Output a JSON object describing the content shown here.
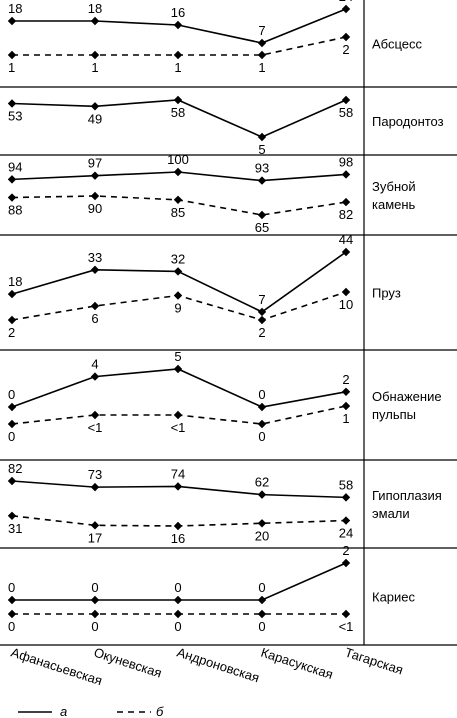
{
  "chart_data": {
    "type": "line",
    "categories": [
      "Афанасьевская",
      "Окуневская",
      "Андроновская",
      "Карасукская",
      "Тагарская"
    ],
    "legend": {
      "a": "а",
      "b": "б",
      "placement": "bottom-left"
    },
    "panels": [
      {
        "label": [
          "Абсцесс"
        ],
        "series": [
          {
            "name": "а",
            "style": "solid",
            "values": [
              18,
              18,
              16,
              7,
              24
            ],
            "labels": [
              "18",
              "18",
              "16",
              "7",
              "24"
            ]
          },
          {
            "name": "б",
            "style": "dashed",
            "values": [
              1,
              1,
              1,
              1,
              2
            ],
            "labels": [
              "1",
              "1",
              "1",
              "1",
              "2"
            ]
          }
        ]
      },
      {
        "label": [
          "Пародонтоз"
        ],
        "series": [
          {
            "name": "а",
            "style": "solid",
            "values": [
              53,
              49,
              58,
              5,
              58
            ],
            "labels": [
              "53",
              "49",
              "58",
              "5",
              "58"
            ]
          }
        ]
      },
      {
        "label": [
          "Зубной",
          "камень"
        ],
        "series": [
          {
            "name": "а",
            "style": "solid",
            "values": [
              94,
              97,
              100,
              93,
              98
            ],
            "labels": [
              "94",
              "97",
              "100",
              "93",
              "98"
            ]
          },
          {
            "name": "б",
            "style": "dashed",
            "values": [
              88,
              90,
              85,
              65,
              82
            ],
            "labels": [
              "88",
              "90",
              "85",
              "65",
              "82"
            ]
          }
        ]
      },
      {
        "label": [
          "Пруз"
        ],
        "series": [
          {
            "name": "а",
            "style": "solid",
            "values": [
              18,
              33,
              32,
              7,
              44
            ],
            "labels": [
              "18",
              "33",
              "32",
              "7",
              "44"
            ]
          },
          {
            "name": "б",
            "style": "dashed",
            "values": [
              2,
              6,
              9,
              2,
              10
            ],
            "labels": [
              "2",
              "6",
              "9",
              "2",
              "10"
            ]
          }
        ]
      },
      {
        "label": [
          "Обнажение",
          "пульпы"
        ],
        "series": [
          {
            "name": "а",
            "style": "solid",
            "values": [
              0,
              4,
              5,
              0,
              2
            ],
            "labels": [
              "0",
              "4",
              "5",
              "0",
              "2"
            ]
          },
          {
            "name": "б",
            "style": "dashed",
            "values": [
              0,
              0.5,
              0.5,
              0,
              1
            ],
            "labels": [
              "0",
              "<1",
              "<1",
              "0",
              "1"
            ]
          }
        ]
      },
      {
        "label": [
          "Гипоплазия",
          "эмали"
        ],
        "series": [
          {
            "name": "а",
            "style": "solid",
            "values": [
              82,
              73,
              74,
              62,
              58
            ],
            "labels": [
              "82",
              "73",
              "74",
              "62",
              "58"
            ]
          },
          {
            "name": "б",
            "style": "dashed",
            "values": [
              31,
              17,
              16,
              20,
              24
            ],
            "labels": [
              "31",
              "17",
              "16",
              "20",
              "24"
            ]
          }
        ]
      },
      {
        "label": [
          "Кариес"
        ],
        "series": [
          {
            "name": "а",
            "style": "solid",
            "values": [
              0,
              0,
              0,
              0,
              2
            ],
            "labels": [
              "0",
              "0",
              "0",
              "0",
              "2"
            ]
          },
          {
            "name": "б",
            "style": "dashed",
            "values": [
              0,
              0,
              0,
              0,
              0.5
            ],
            "labels": [
              "0",
              "0",
              "0",
              "0",
              "<1"
            ]
          }
        ]
      }
    ],
    "grid": false
  }
}
